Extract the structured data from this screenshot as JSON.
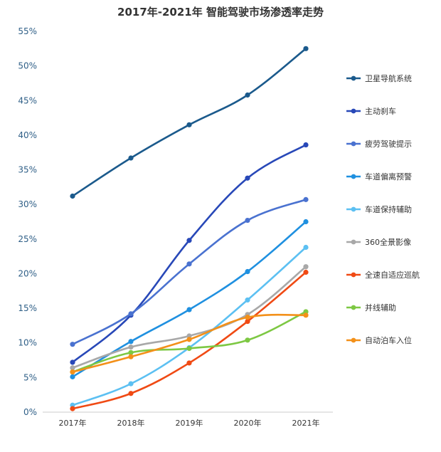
{
  "chart_data": {
    "type": "line",
    "title": "2017年-2021年 智能驾驶市场渗透率走势",
    "xlabel": "",
    "ylabel": "",
    "categories": [
      "2017年",
      "2018年",
      "2019年",
      "2020年",
      "2021年"
    ],
    "ylim": [
      0,
      55
    ],
    "yticks": [
      0,
      5,
      10,
      15,
      20,
      25,
      30,
      35,
      40,
      45,
      50,
      55
    ],
    "ytick_labels": [
      "0%",
      "5%",
      "10%",
      "15%",
      "20%",
      "25%",
      "30%",
      "35%",
      "40%",
      "45%",
      "50%",
      "55%"
    ],
    "grid": false,
    "legend_position": "right",
    "smooth": true,
    "series": [
      {
        "name": "卫星导航系统",
        "color": "#1b5a8c",
        "values": [
          31.2,
          36.7,
          41.5,
          45.8,
          52.5
        ]
      },
      {
        "name": "主动刹车",
        "color": "#2848b8",
        "values": [
          7.2,
          14.0,
          24.8,
          33.8,
          38.6
        ]
      },
      {
        "name": "疲劳驾驶提示",
        "color": "#4a72d0",
        "values": [
          9.8,
          14.2,
          21.4,
          27.7,
          30.7
        ]
      },
      {
        "name": "车道偏离预警",
        "color": "#1f90e0",
        "values": [
          5.1,
          10.2,
          14.8,
          20.3,
          27.5
        ]
      },
      {
        "name": "车道保持辅助",
        "color": "#5cc0f2",
        "values": [
          1.0,
          4.1,
          9.3,
          16.2,
          23.8
        ]
      },
      {
        "name": "360全景影像",
        "color": "#a8a8a8",
        "values": [
          6.4,
          9.4,
          11.0,
          14.1,
          21.0
        ]
      },
      {
        "name": "全速自适应巡航",
        "color": "#f04a14",
        "values": [
          0.5,
          2.7,
          7.1,
          13.1,
          20.2
        ]
      },
      {
        "name": "并线辅助",
        "color": "#7dc843",
        "values": [
          5.8,
          8.6,
          9.2,
          10.4,
          14.5
        ]
      },
      {
        "name": "自动泊车入位",
        "color": "#f39019",
        "values": [
          5.8,
          8.0,
          10.5,
          13.7,
          14.0
        ]
      }
    ]
  }
}
